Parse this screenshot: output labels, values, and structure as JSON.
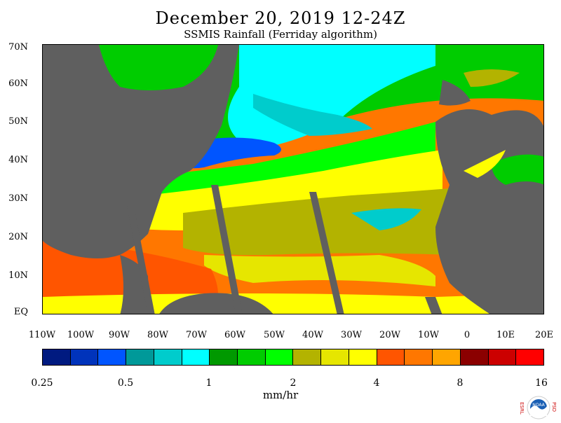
{
  "title": "December 20, 2019 12-24Z",
  "subtitle": "SSMIS Rainfall (Ferriday algorithm)",
  "map": {
    "lat_labels": [
      "70N",
      "60N",
      "50N",
      "40N",
      "30N",
      "20N",
      "10N",
      "EQ"
    ],
    "lon_labels": [
      "110W",
      "100W",
      "90W",
      "80W",
      "70W",
      "60W",
      "50W",
      "40W",
      "30W",
      "20W",
      "10W",
      "0",
      "10E",
      "20E"
    ],
    "land_color": "#5f5f5f"
  },
  "legend": {
    "colors": [
      "#001a80",
      "#0033bb",
      "#0055ff",
      "#009999",
      "#00cccc",
      "#00ffff",
      "#009900",
      "#00cc00",
      "#00ff00",
      "#b3b300",
      "#e6e600",
      "#ffff00",
      "#ff5500",
      "#ff7700",
      "#ffa500",
      "#8b0000",
      "#cc0000",
      "#ff0000"
    ],
    "ticks": [
      "0.25",
      "0.5",
      "1",
      "2",
      "4",
      "8",
      "16"
    ],
    "unit": "mm/hr"
  },
  "logo": {
    "left_letters": "ESRL",
    "right_letters": "PSD",
    "center_text": "NOAA"
  }
}
